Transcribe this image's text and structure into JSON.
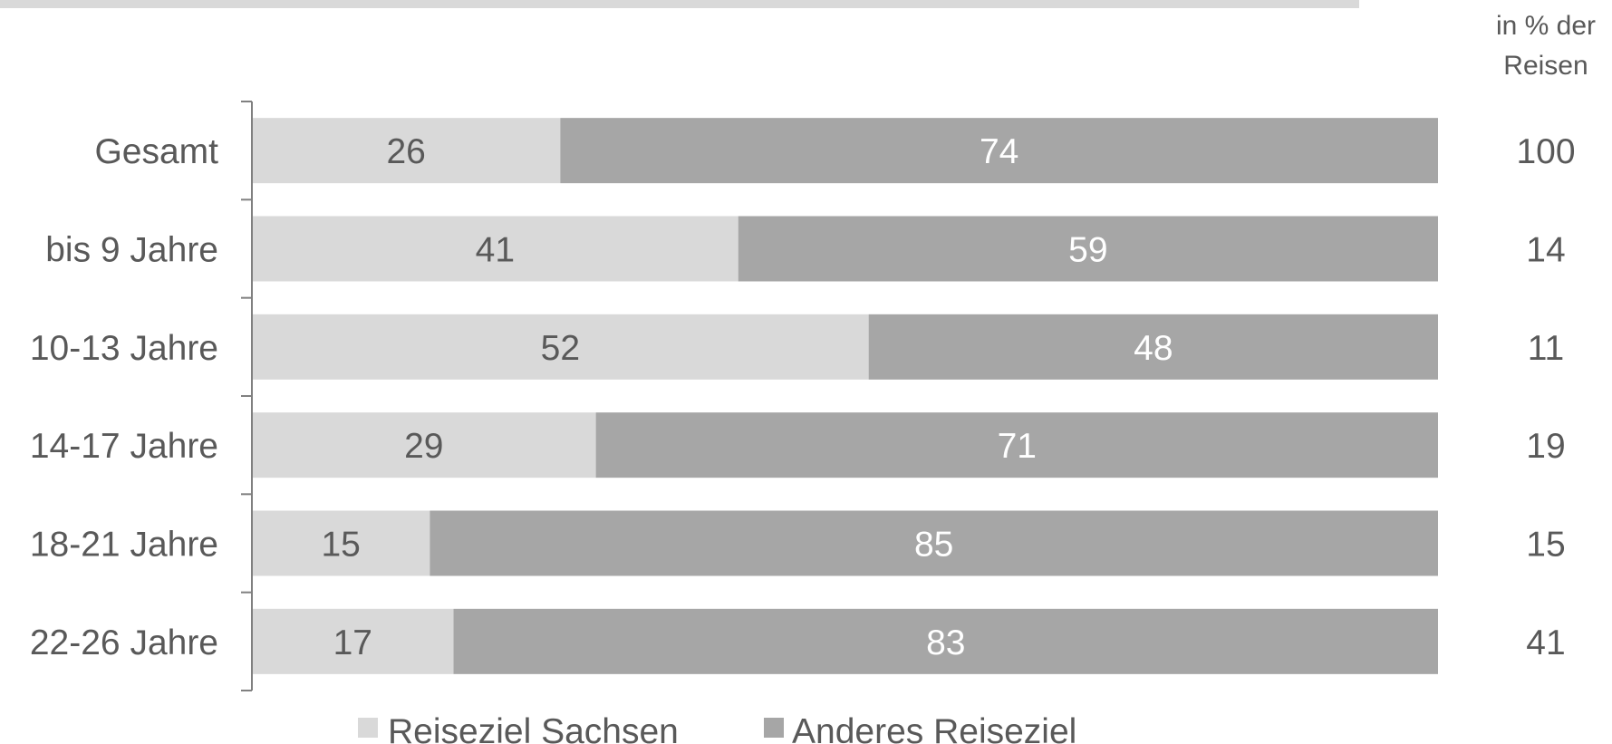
{
  "chart_data": {
    "type": "bar",
    "orientation": "horizontal",
    "stacked": true,
    "categories": [
      "Gesamt",
      "bis 9 Jahre",
      "10-13 Jahre",
      "14-17 Jahre",
      "18-21 Jahre",
      "22-26 Jahre"
    ],
    "series": [
      {
        "name": "Reiseziel Sachsen",
        "values": [
          26,
          41,
          52,
          29,
          15,
          17
        ],
        "color": "#d9d9d9",
        "label_color": "#595959"
      },
      {
        "name": "Anderes Reiseziel",
        "values": [
          74,
          59,
          48,
          71,
          85,
          83
        ],
        "color": "#a6a6a6",
        "label_color": "#ffffff"
      }
    ],
    "xlim": [
      0,
      100
    ],
    "grid": false,
    "legend_position": "bottom",
    "side_column": {
      "header_line1": "in % der",
      "header_line2": "Reisen",
      "values": [
        "100",
        "14",
        "11",
        "19",
        "15",
        "41"
      ]
    },
    "title": "",
    "xlabel": "",
    "ylabel": ""
  },
  "colors": {
    "text": "#595959",
    "axis": "#808080",
    "top_rule": "#d9d9d9"
  }
}
